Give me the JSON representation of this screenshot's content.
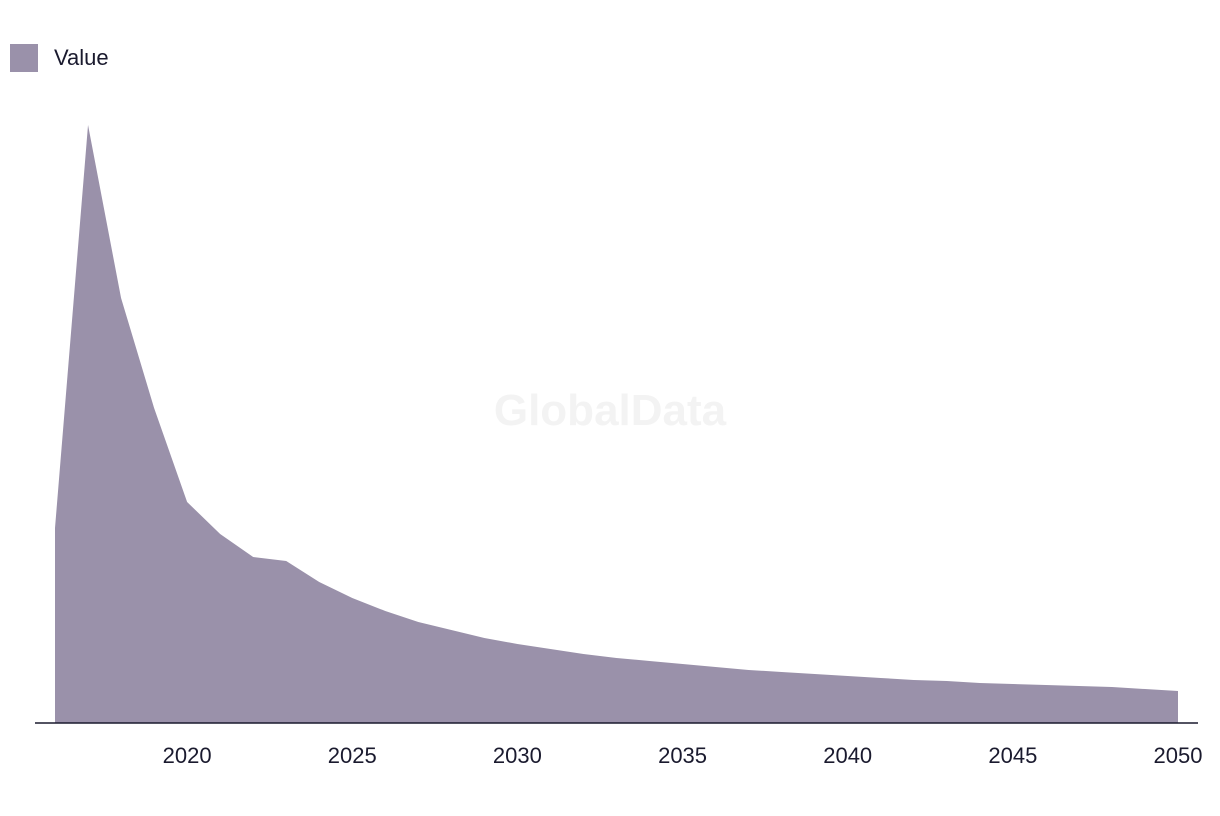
{
  "watermark": "GlobalData",
  "chart_data": {
    "type": "area",
    "title": "",
    "xlabel": "",
    "ylabel": "",
    "legend_position": "top-left",
    "grid": false,
    "color": "#9a91aa",
    "x": [
      2016,
      2017,
      2018,
      2019,
      2020,
      2021,
      2022,
      2023,
      2024,
      2025,
      2026,
      2027,
      2028,
      2029,
      2030,
      2031,
      2032,
      2033,
      2034,
      2035,
      2036,
      2037,
      2038,
      2039,
      2040,
      2041,
      2042,
      2043,
      2044,
      2045,
      2046,
      2047,
      2048,
      2049,
      2050
    ],
    "series": [
      {
        "name": "Value",
        "values": [
          195,
          598,
          425,
          315,
          221,
          189,
          166,
          162,
          141,
          125,
          112,
          101,
          93,
          85,
          79,
          74,
          69,
          65,
          62,
          59,
          56,
          53,
          51,
          49,
          47,
          45,
          43,
          42,
          40,
          39,
          38,
          37,
          36,
          34,
          32
        ]
      }
    ],
    "xticks": [
      "2020",
      "2025",
      "2030",
      "2035",
      "2040",
      "2045",
      "2050"
    ],
    "xlim": [
      2016,
      2050
    ],
    "ylim": [
      0,
      620
    ]
  }
}
